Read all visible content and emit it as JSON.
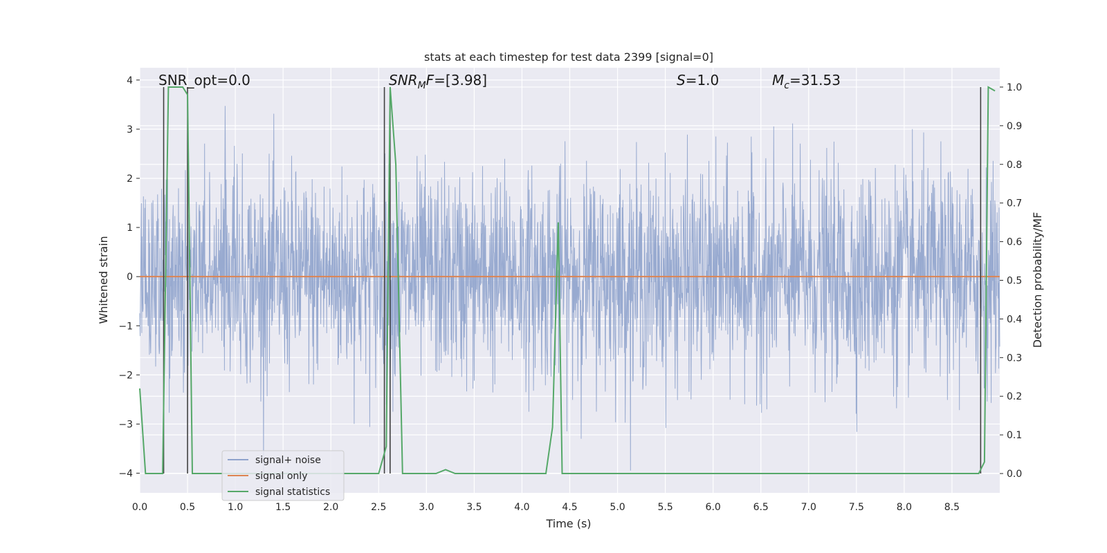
{
  "chart_data": {
    "type": "line",
    "title": "stats at each timestep for test data 2399 [signal=0]",
    "xlabel": "Time (s)",
    "ylabel_left": "Whitened strain",
    "ylabel_right": "Detection probability/MF",
    "xlim": [
      0.0,
      9.0
    ],
    "ylim_left": [
      -4.4,
      4.25
    ],
    "ylim_right": [
      -0.05,
      1.05
    ],
    "xticks": [
      "0.0",
      "0.5",
      "1.0",
      "1.5",
      "2.0",
      "2.5",
      "3.0",
      "3.5",
      "4.0",
      "4.5",
      "5.0",
      "5.5",
      "6.0",
      "6.5",
      "7.0",
      "7.5",
      "8.0",
      "8.5"
    ],
    "yticks_left": [
      "4",
      "3",
      "2",
      "1",
      "0",
      "−1",
      "−2",
      "−3",
      "−4"
    ],
    "yticks_right": [
      "1.0",
      "0.9",
      "0.8",
      "0.7",
      "0.6",
      "0.5",
      "0.4",
      "0.3",
      "0.2",
      "0.1",
      "0.0"
    ],
    "grid": true,
    "legend_position": "lower-left",
    "annotations": {
      "snr_opt": "SNR_opt=0.0",
      "snr_mf_base": "SNR",
      "snr_mf_sub": "M",
      "snr_mf_tail": "F",
      "snr_mf_value": "=[3.98]",
      "s_label": "S",
      "s_value": "=1.0",
      "mc_label": "M",
      "mc_sub": "c",
      "mc_value": "=31.53"
    },
    "series": [
      {
        "name": "signal+ noise",
        "color": "#8fa3cc",
        "axis": "left",
        "description_range": [
          -4.0,
          3.9
        ]
      },
      {
        "name": "signal only",
        "color": "#dd8452",
        "axis": "left",
        "x": [
          0.0,
          9.0
        ],
        "y": [
          0.0,
          0.0
        ]
      },
      {
        "name": "signal statistics",
        "color": "#55a868",
        "axis": "right",
        "x": [
          0.0,
          0.06,
          0.24,
          0.3,
          0.45,
          0.5,
          0.55,
          0.6,
          2.4,
          2.5,
          2.58,
          2.62,
          2.68,
          2.75,
          3.0,
          3.1,
          3.2,
          3.3,
          4.0,
          4.25,
          4.32,
          4.38,
          4.42,
          4.48,
          4.6,
          8.7,
          8.78,
          8.84,
          8.88,
          8.95
        ],
        "y": [
          0.22,
          0.0,
          0.0,
          1.0,
          1.0,
          0.98,
          0.0,
          0.0,
          0.0,
          0.0,
          0.07,
          1.0,
          0.8,
          0.0,
          0.0,
          0.0,
          0.01,
          0.0,
          0.0,
          0.0,
          0.12,
          0.65,
          0.0,
          0.0,
          0.0,
          0.0,
          0.0,
          0.03,
          1.0,
          0.99
        ]
      }
    ],
    "marker_lines_x": [
      0.25,
      0.5,
      2.56,
      2.62,
      8.8
    ],
    "marker_color": "#404040"
  }
}
